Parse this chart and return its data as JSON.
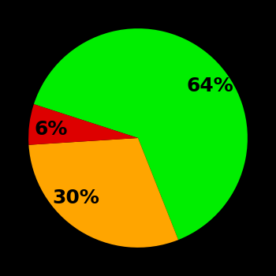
{
  "slices": [
    64,
    30,
    6
  ],
  "labels": [
    "64%",
    "30%",
    "6%"
  ],
  "colors": [
    "#00ee00",
    "#ffa500",
    "#dd0000"
  ],
  "background_color": "#000000",
  "text_color": "#000000",
  "font_size": 18,
  "font_weight": "bold",
  "startangle": 162,
  "counterclock": false,
  "wedge_edge_color": "none",
  "labeldistance": 0.65
}
